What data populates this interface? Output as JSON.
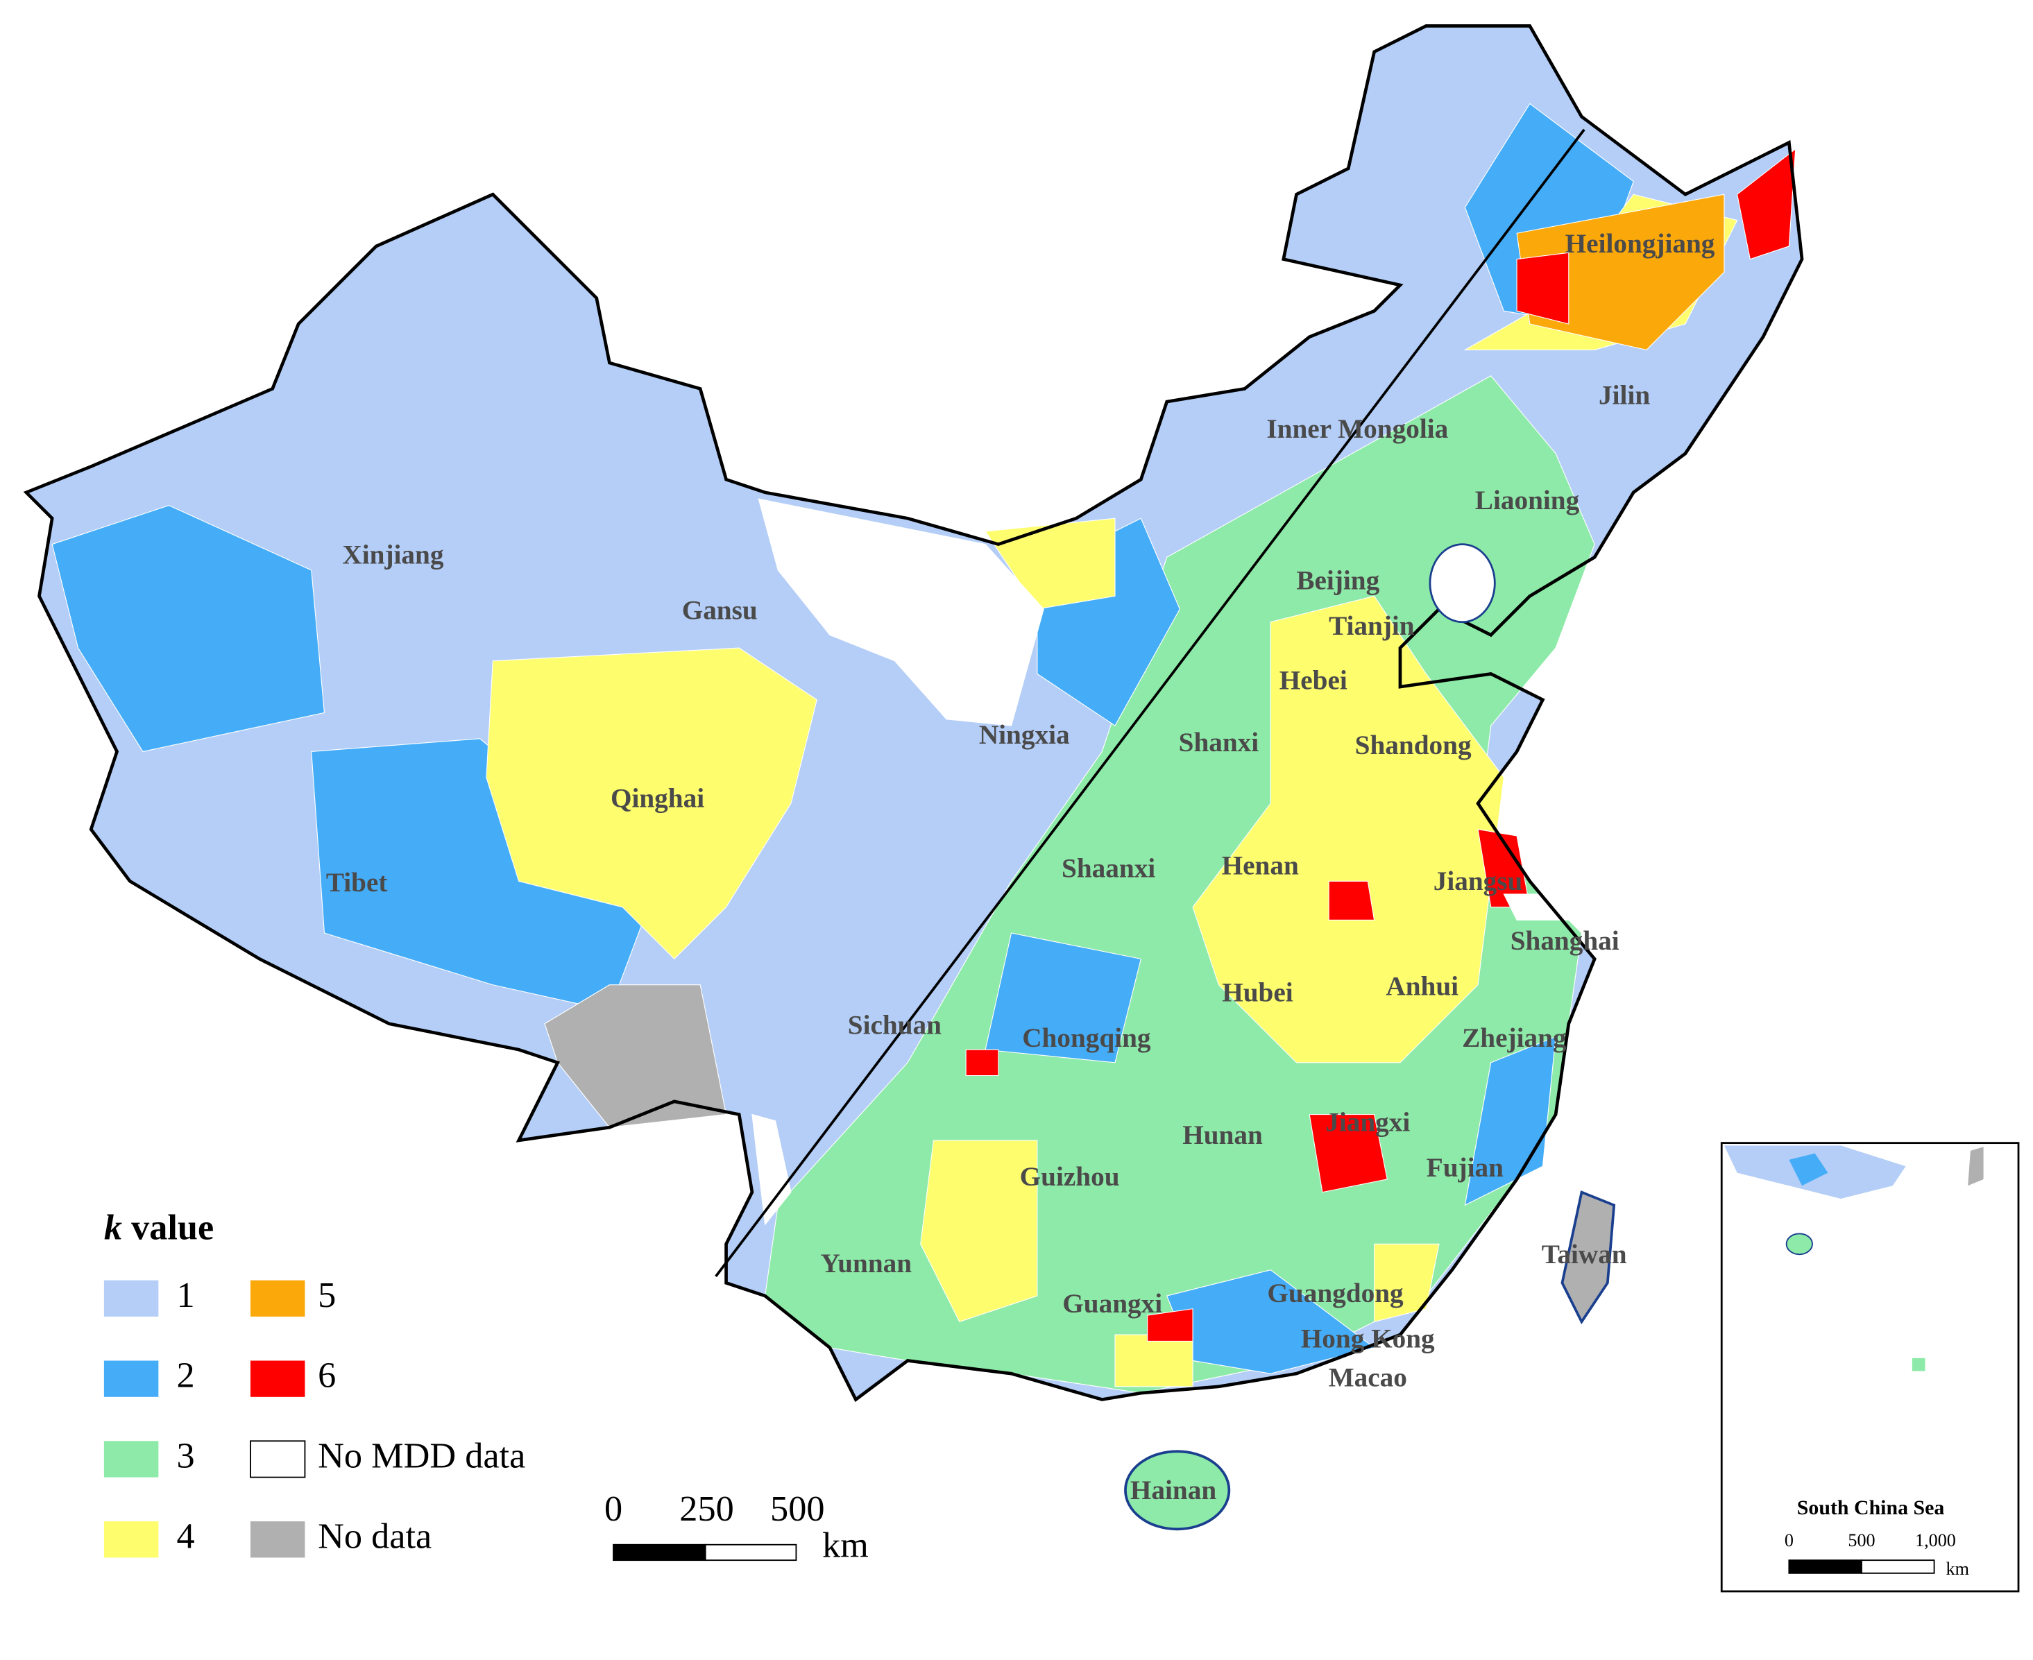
{
  "legend": {
    "title_symbol": "k",
    "title": "value",
    "items": [
      {
        "label": "1",
        "color": "#b4cef7"
      },
      {
        "label": "2",
        "color": "#45adf8"
      },
      {
        "label": "3",
        "color": "#8eeaa8"
      },
      {
        "label": "4",
        "color": "#fdfd6e"
      },
      {
        "label": "5",
        "color": "#fba80b"
      },
      {
        "label": "6",
        "color": "#fe0000"
      },
      {
        "label": "No MDD data",
        "color": "#ffffff"
      },
      {
        "label": "No data",
        "color": "#b0b0b0"
      }
    ]
  },
  "provinces": [
    "Xinjiang",
    "Gansu",
    "Inner Mongolia",
    "Heilongjiang",
    "Jilin",
    "Liaoning",
    "Beijing",
    "Tianjin",
    "Hebei",
    "Ningxia",
    "Shanxi",
    "Shandong",
    "Qinghai",
    "Tibet",
    "Shaanxi",
    "Henan",
    "Jiangsu",
    "Shanghai",
    "Hubei",
    "Anhui",
    "Sichuan",
    "Chongqing",
    "Zhejiang",
    "Hunan",
    "Jiangxi",
    "Fujian",
    "Guizhou",
    "Yunnan",
    "Taiwan",
    "Guangdong",
    "Guangxi",
    "Hong Kong",
    "Macao",
    "Hainan"
  ],
  "scale_bar": {
    "labels": [
      "0",
      "250",
      "500"
    ],
    "unit": "km"
  },
  "inset": {
    "title": "South China Sea",
    "scale_labels": [
      "0",
      "500",
      "1,000"
    ],
    "unit": "km"
  }
}
